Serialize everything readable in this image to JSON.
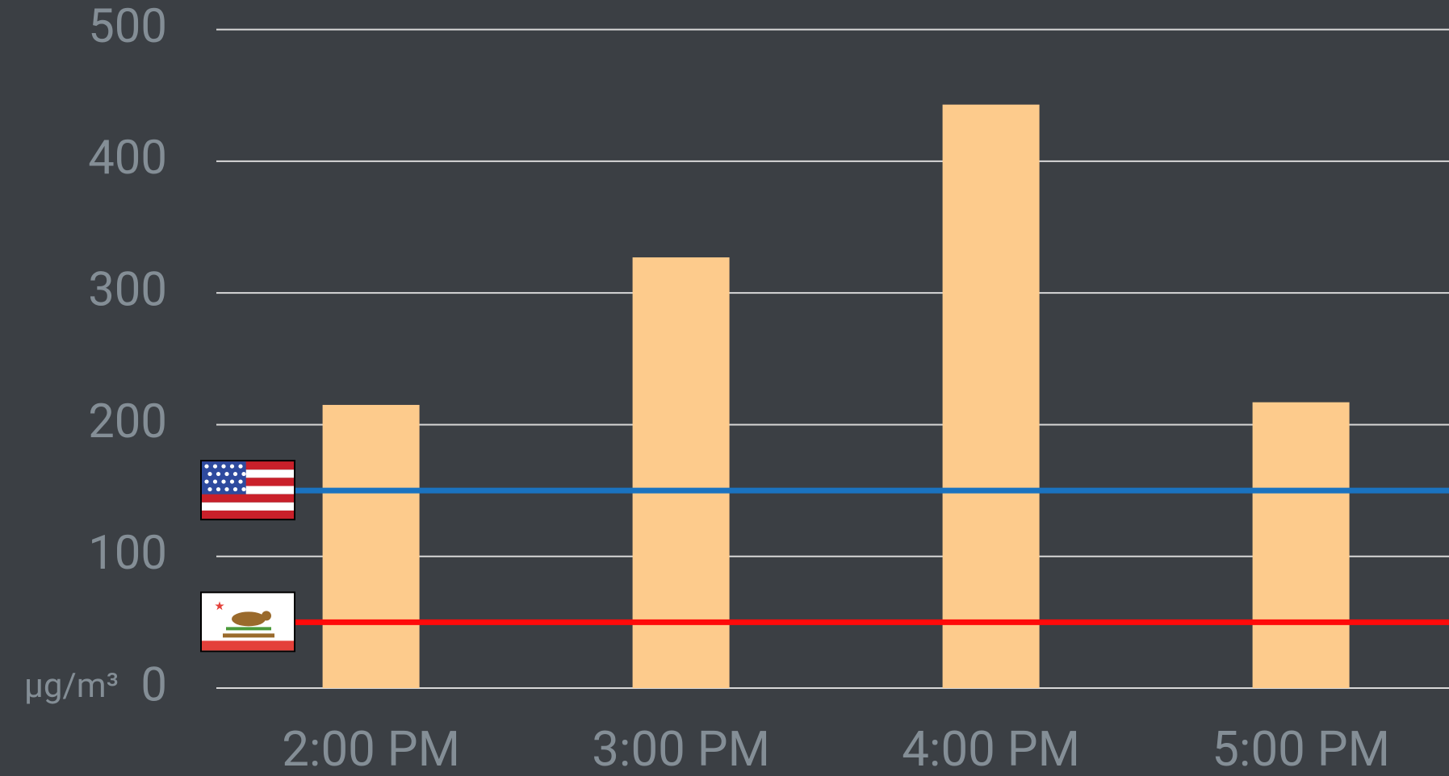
{
  "chart_data": {
    "type": "bar",
    "y_label": "µg/m³",
    "categories": [
      "2:00 PM",
      "3:00 PM",
      "4:00 PM",
      "5:00 PM"
    ],
    "values": [
      215,
      327,
      443,
      217
    ],
    "color": "#fdcb8c",
    "ylim": [
      0,
      500
    ],
    "yticks": [
      0,
      100,
      200,
      300,
      400,
      500
    ],
    "grid": true,
    "reference_lines": [
      {
        "value": 150,
        "color": "#1a73c0"
      },
      {
        "value": 50,
        "color": "#ff0a0a"
      }
    ]
  }
}
